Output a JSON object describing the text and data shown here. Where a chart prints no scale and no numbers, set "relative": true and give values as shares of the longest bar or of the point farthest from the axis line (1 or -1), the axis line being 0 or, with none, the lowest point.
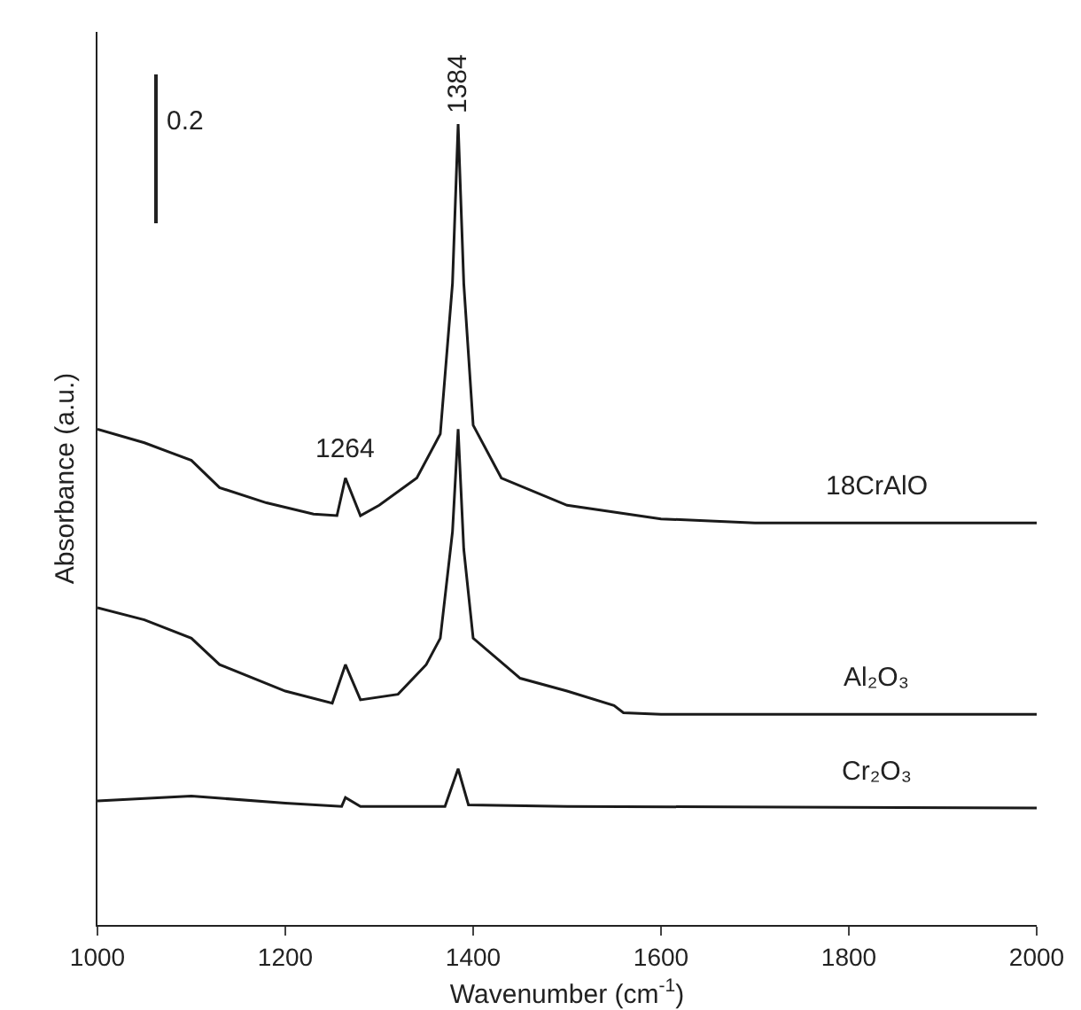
{
  "chart_data": {
    "type": "line",
    "relative": true,
    "xlabel": "Wavenumber (cm$^{-1}$)",
    "ylabel": "Absorbance (a.u.)",
    "xlim": [
      1000,
      2000
    ],
    "xticks": [
      1000,
      1200,
      1400,
      1600,
      1800,
      2000
    ],
    "grid": false,
    "legend": false,
    "marker": "none",
    "line_style": "solid",
    "annotations": [
      {
        "text": "1264",
        "x": 1264,
        "y": 0.558
      },
      {
        "text": "1384",
        "x": 1384,
        "y": 1
      },
      "0.2"
    ],
    "series": [
      {
        "name": "18CrAlO",
        "color": "#1a1a1a",
        "x": [
          1000,
          1050,
          1100,
          1130,
          1180,
          1230,
          1255,
          1264,
          1280,
          1300,
          1340,
          1365,
          1378,
          1384,
          1390,
          1400,
          1430,
          1500,
          1600,
          1700,
          2000
        ],
        "values": [
          0.619,
          0.602,
          0.58,
          0.546,
          0.527,
          0.513,
          0.511,
          0.558,
          0.511,
          0.524,
          0.558,
          0.613,
          0.801,
          1,
          0.801,
          0.624,
          0.558,
          0.524,
          0.507,
          0.502,
          0.502
        ]
      },
      {
        "name": "Al₂O₃",
        "color": "#1a1a1a",
        "x": [
          1000,
          1050,
          1100,
          1130,
          1200,
          1250,
          1264,
          1280,
          1320,
          1350,
          1365,
          1378,
          1384,
          1390,
          1400,
          1450,
          1500,
          1550,
          1560,
          1600,
          2000
        ],
        "values": [
          0.396,
          0.381,
          0.358,
          0.325,
          0.292,
          0.277,
          0.325,
          0.281,
          0.288,
          0.325,
          0.358,
          0.491,
          0.619,
          0.469,
          0.358,
          0.308,
          0.292,
          0.274,
          0.265,
          0.263,
          0.263
        ]
      },
      {
        "name": "Cr₂O₃",
        "color": "#1a1a1a",
        "x": [
          1000,
          1100,
          1200,
          1260,
          1264,
          1280,
          1370,
          1384,
          1395,
          1500,
          2000
        ],
        "values": [
          0.155,
          0.161,
          0.152,
          0.148,
          0.159,
          0.148,
          0.148,
          0.195,
          0.15,
          0.148,
          0.146
        ]
      }
    ]
  }
}
